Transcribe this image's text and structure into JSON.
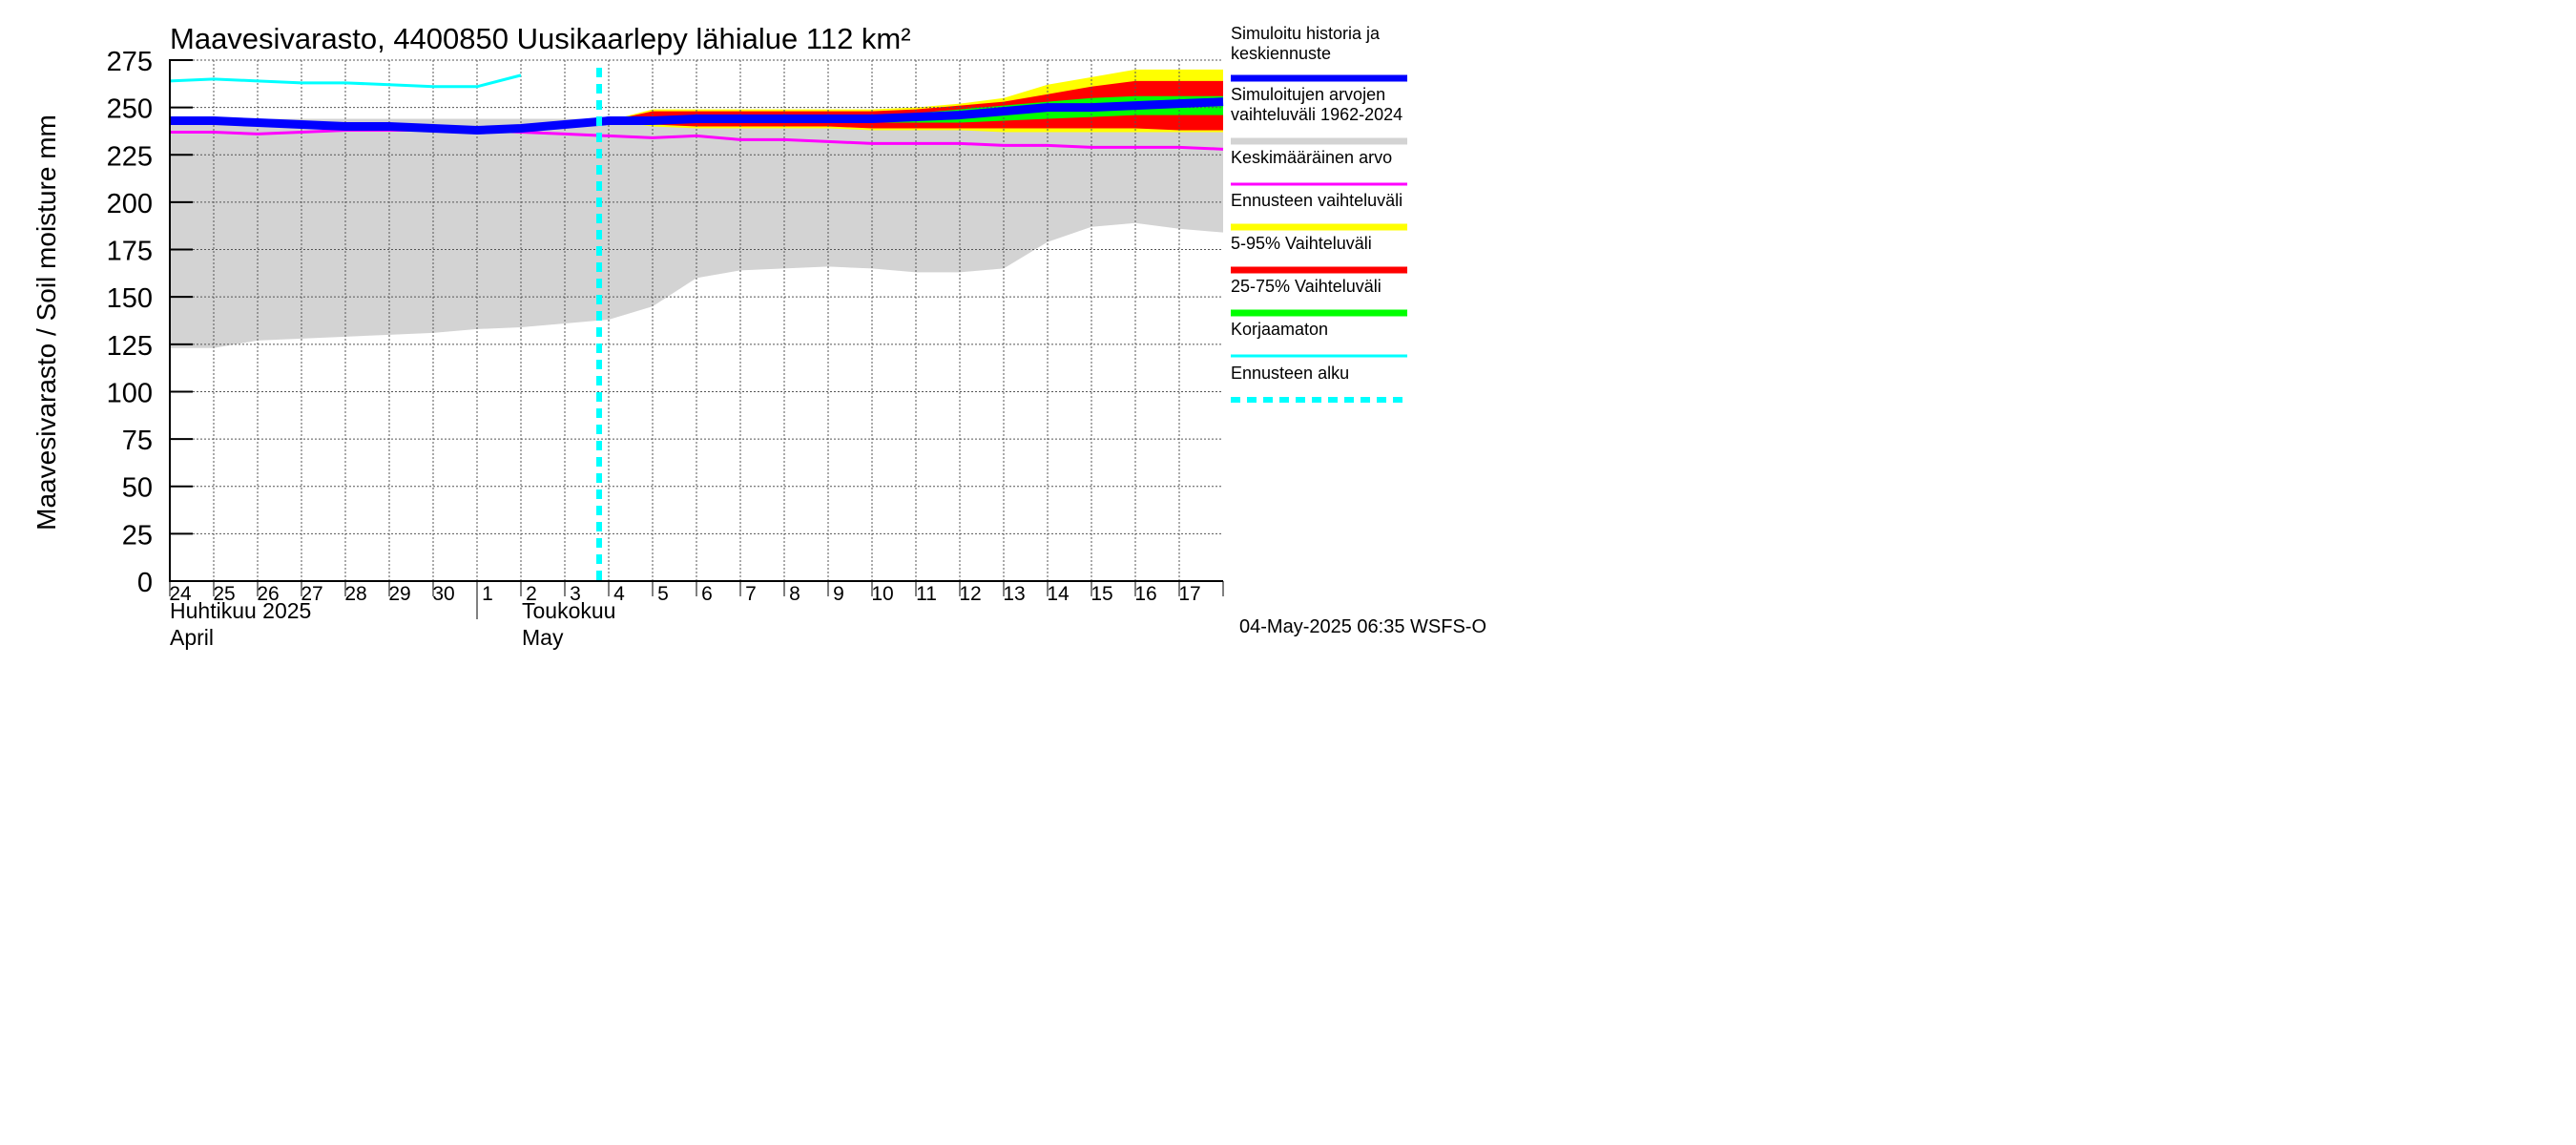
{
  "chart_data": {
    "type": "area",
    "title": "Maavesivarasto, 4400850 Uusikaarlepy lähialue 112 km²",
    "ylabel": "Maavesivarasto / Soil moisture   mm",
    "ylim": [
      0,
      275
    ],
    "yticks": [
      0,
      25,
      50,
      75,
      100,
      125,
      150,
      175,
      200,
      225,
      250,
      275
    ],
    "x_dates": [
      "2025-04-24",
      "2025-04-25",
      "2025-04-26",
      "2025-04-27",
      "2025-04-28",
      "2025-04-29",
      "2025-04-30",
      "2025-05-01",
      "2025-05-02",
      "2025-05-03",
      "2025-05-04",
      "2025-05-05",
      "2025-05-06",
      "2025-05-07",
      "2025-05-08",
      "2025-05-09",
      "2025-05-10",
      "2025-05-11",
      "2025-05-12",
      "2025-05-13",
      "2025-05-14",
      "2025-05-15",
      "2025-05-16",
      "2025-05-17",
      "2025-05-18"
    ],
    "xtick_labels": [
      "24",
      "25",
      "26",
      "27",
      "28",
      "29",
      "30",
      "1",
      "2",
      "3",
      "4",
      "5",
      "6",
      "7",
      "8",
      "9",
      "10",
      "11",
      "12",
      "13",
      "14",
      "15",
      "16",
      "17"
    ],
    "month_labels": [
      {
        "line1": "Huhtikuu  2025",
        "line2": "April"
      },
      {
        "line1": "Toukokuu",
        "line2": "May"
      }
    ],
    "forecast_start": "2025-05-04",
    "grid": true,
    "legend_position": "right",
    "series": [
      {
        "name": "Simuloitu historia ja keskiennuste",
        "color": "#0000ff",
        "values": [
          243,
          243,
          242,
          241,
          240,
          240,
          239,
          238,
          239,
          241,
          243,
          243,
          244,
          244,
          244,
          244,
          244,
          245,
          246,
          248,
          250,
          250,
          251,
          252,
          253
        ]
      },
      {
        "name": "Simuloitujen arvojen vaihteluväli 1962-2024",
        "color": "#d3d3d3",
        "lower": [
          123,
          123,
          127,
          128,
          129,
          130,
          131,
          133,
          134,
          136,
          138,
          145,
          160,
          164,
          165,
          166,
          165,
          163,
          163,
          165,
          179,
          187,
          189,
          186,
          184
        ],
        "upper": [
          244,
          244,
          244,
          244,
          244,
          244,
          244,
          244,
          244,
          244,
          244,
          244,
          244,
          244,
          244,
          244,
          244,
          244,
          244,
          244,
          244,
          244,
          244,
          244,
          244
        ]
      },
      {
        "name": "Keskimääräinen arvo",
        "color": "#ff00ff",
        "values": [
          237,
          237,
          236,
          237,
          238,
          238,
          238,
          238,
          237,
          236,
          235,
          234,
          235,
          233,
          233,
          232,
          231,
          231,
          231,
          230,
          230,
          229,
          229,
          229,
          228
        ]
      },
      {
        "name": "Ennusteen vaihteluväli",
        "color": "#ffff00",
        "lower": [
          null,
          null,
          null,
          null,
          null,
          null,
          null,
          null,
          null,
          null,
          243,
          240,
          239,
          239,
          239,
          239,
          238,
          238,
          238,
          237,
          237,
          237,
          237,
          237,
          237
        ],
        "upper": [
          null,
          null,
          null,
          null,
          null,
          null,
          null,
          null,
          null,
          null,
          243,
          249,
          249,
          249,
          249,
          249,
          249,
          250,
          252,
          255,
          262,
          266,
          270,
          270,
          270
        ]
      },
      {
        "name": "5-95% Vaihteluväli",
        "color": "#ff0000",
        "lower": [
          null,
          null,
          null,
          null,
          null,
          null,
          null,
          null,
          null,
          null,
          243,
          241,
          240,
          240,
          240,
          240,
          239,
          239,
          239,
          239,
          239,
          239,
          239,
          238,
          238
        ],
        "upper": [
          null,
          null,
          null,
          null,
          null,
          null,
          null,
          null,
          null,
          null,
          243,
          248,
          248,
          248,
          248,
          248,
          248,
          249,
          251,
          253,
          257,
          261,
          264,
          264,
          264
        ]
      },
      {
        "name": "25-75% Vaihteluväli",
        "color": "#00ff00",
        "lower": [
          null,
          null,
          null,
          null,
          null,
          null,
          null,
          null,
          null,
          null,
          243,
          242,
          242,
          242,
          242,
          242,
          242,
          242,
          242,
          243,
          244,
          245,
          246,
          246,
          246
        ],
        "upper": [
          null,
          null,
          null,
          null,
          null,
          null,
          null,
          null,
          null,
          null,
          243,
          245,
          245,
          246,
          246,
          246,
          246,
          247,
          249,
          251,
          253,
          255,
          256,
          256,
          256
        ]
      },
      {
        "name": "Korjaamaton",
        "color": "#00ffff",
        "values": [
          264,
          265,
          264,
          263,
          263,
          262,
          261,
          261,
          267,
          null,
          null,
          null,
          null,
          null,
          null,
          null,
          null,
          null,
          null,
          null,
          null,
          null,
          null,
          null,
          null
        ]
      },
      {
        "name": "Ennusteen alku",
        "color": "#00ffff"
      }
    ],
    "timestamp": "04-May-2025 06:35 WSFS-O"
  }
}
